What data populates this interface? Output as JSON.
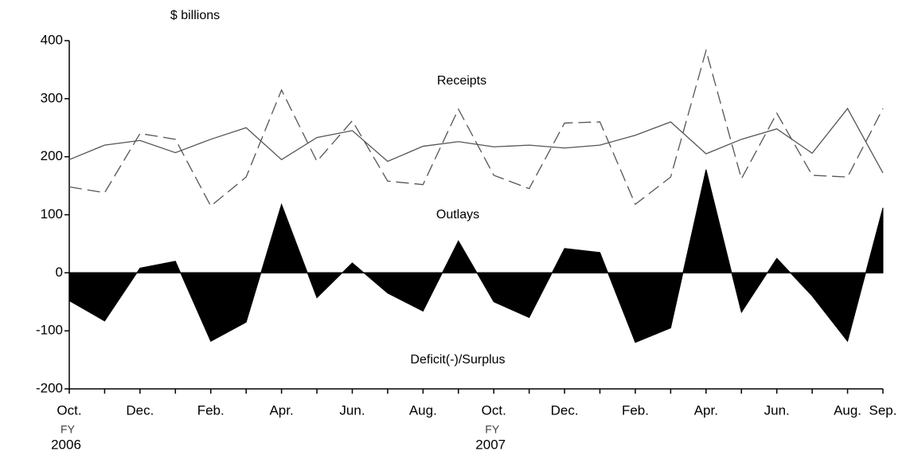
{
  "chart_data": {
    "type": "line",
    "y_unit_label": "$ billions",
    "categories": [
      "Oct.",
      null,
      "Dec.",
      null,
      "Feb.",
      null,
      "Apr.",
      null,
      "Jun.",
      null,
      "Aug.",
      null,
      "Oct.",
      null,
      "Dec.",
      null,
      "Feb.",
      null,
      "Apr.",
      null,
      "Jun.",
      null,
      "Aug.",
      "Sep."
    ],
    "fiscal_years": [
      [
        "FY",
        "2006"
      ],
      [
        "FY",
        "2007"
      ]
    ],
    "series": [
      {
        "name": "Receipts",
        "color": "#555555",
        "style": "dashed",
        "values": [
          148,
          138,
          240,
          230,
          115,
          165,
          315,
          192,
          262,
          158,
          152,
          282,
          168,
          145,
          258,
          260,
          118,
          165,
          383,
          162,
          275,
          168,
          165,
          283
        ]
      },
      {
        "name": "Outlays",
        "color": "#555555",
        "style": "solid",
        "values": [
          195,
          220,
          228,
          207,
          230,
          250,
          195,
          233,
          245,
          192,
          218,
          226,
          217,
          220,
          215,
          220,
          237,
          260,
          205,
          230,
          248,
          206,
          283,
          172
        ]
      },
      {
        "name": "Deficit(-)/Surplus",
        "color": "#000000",
        "style": "area",
        "values": [
          -48,
          -83,
          8,
          20,
          -118,
          -85,
          118,
          -43,
          17,
          -35,
          -66,
          55,
          -50,
          -77,
          42,
          35,
          -120,
          -95,
          178,
          -68,
          25,
          -40,
          -118,
          112
        ]
      }
    ],
    "ylim": [
      -200,
      400
    ],
    "yticks": [
      -200,
      -100,
      0,
      100,
      200,
      300,
      400
    ],
    "grid": false
  }
}
